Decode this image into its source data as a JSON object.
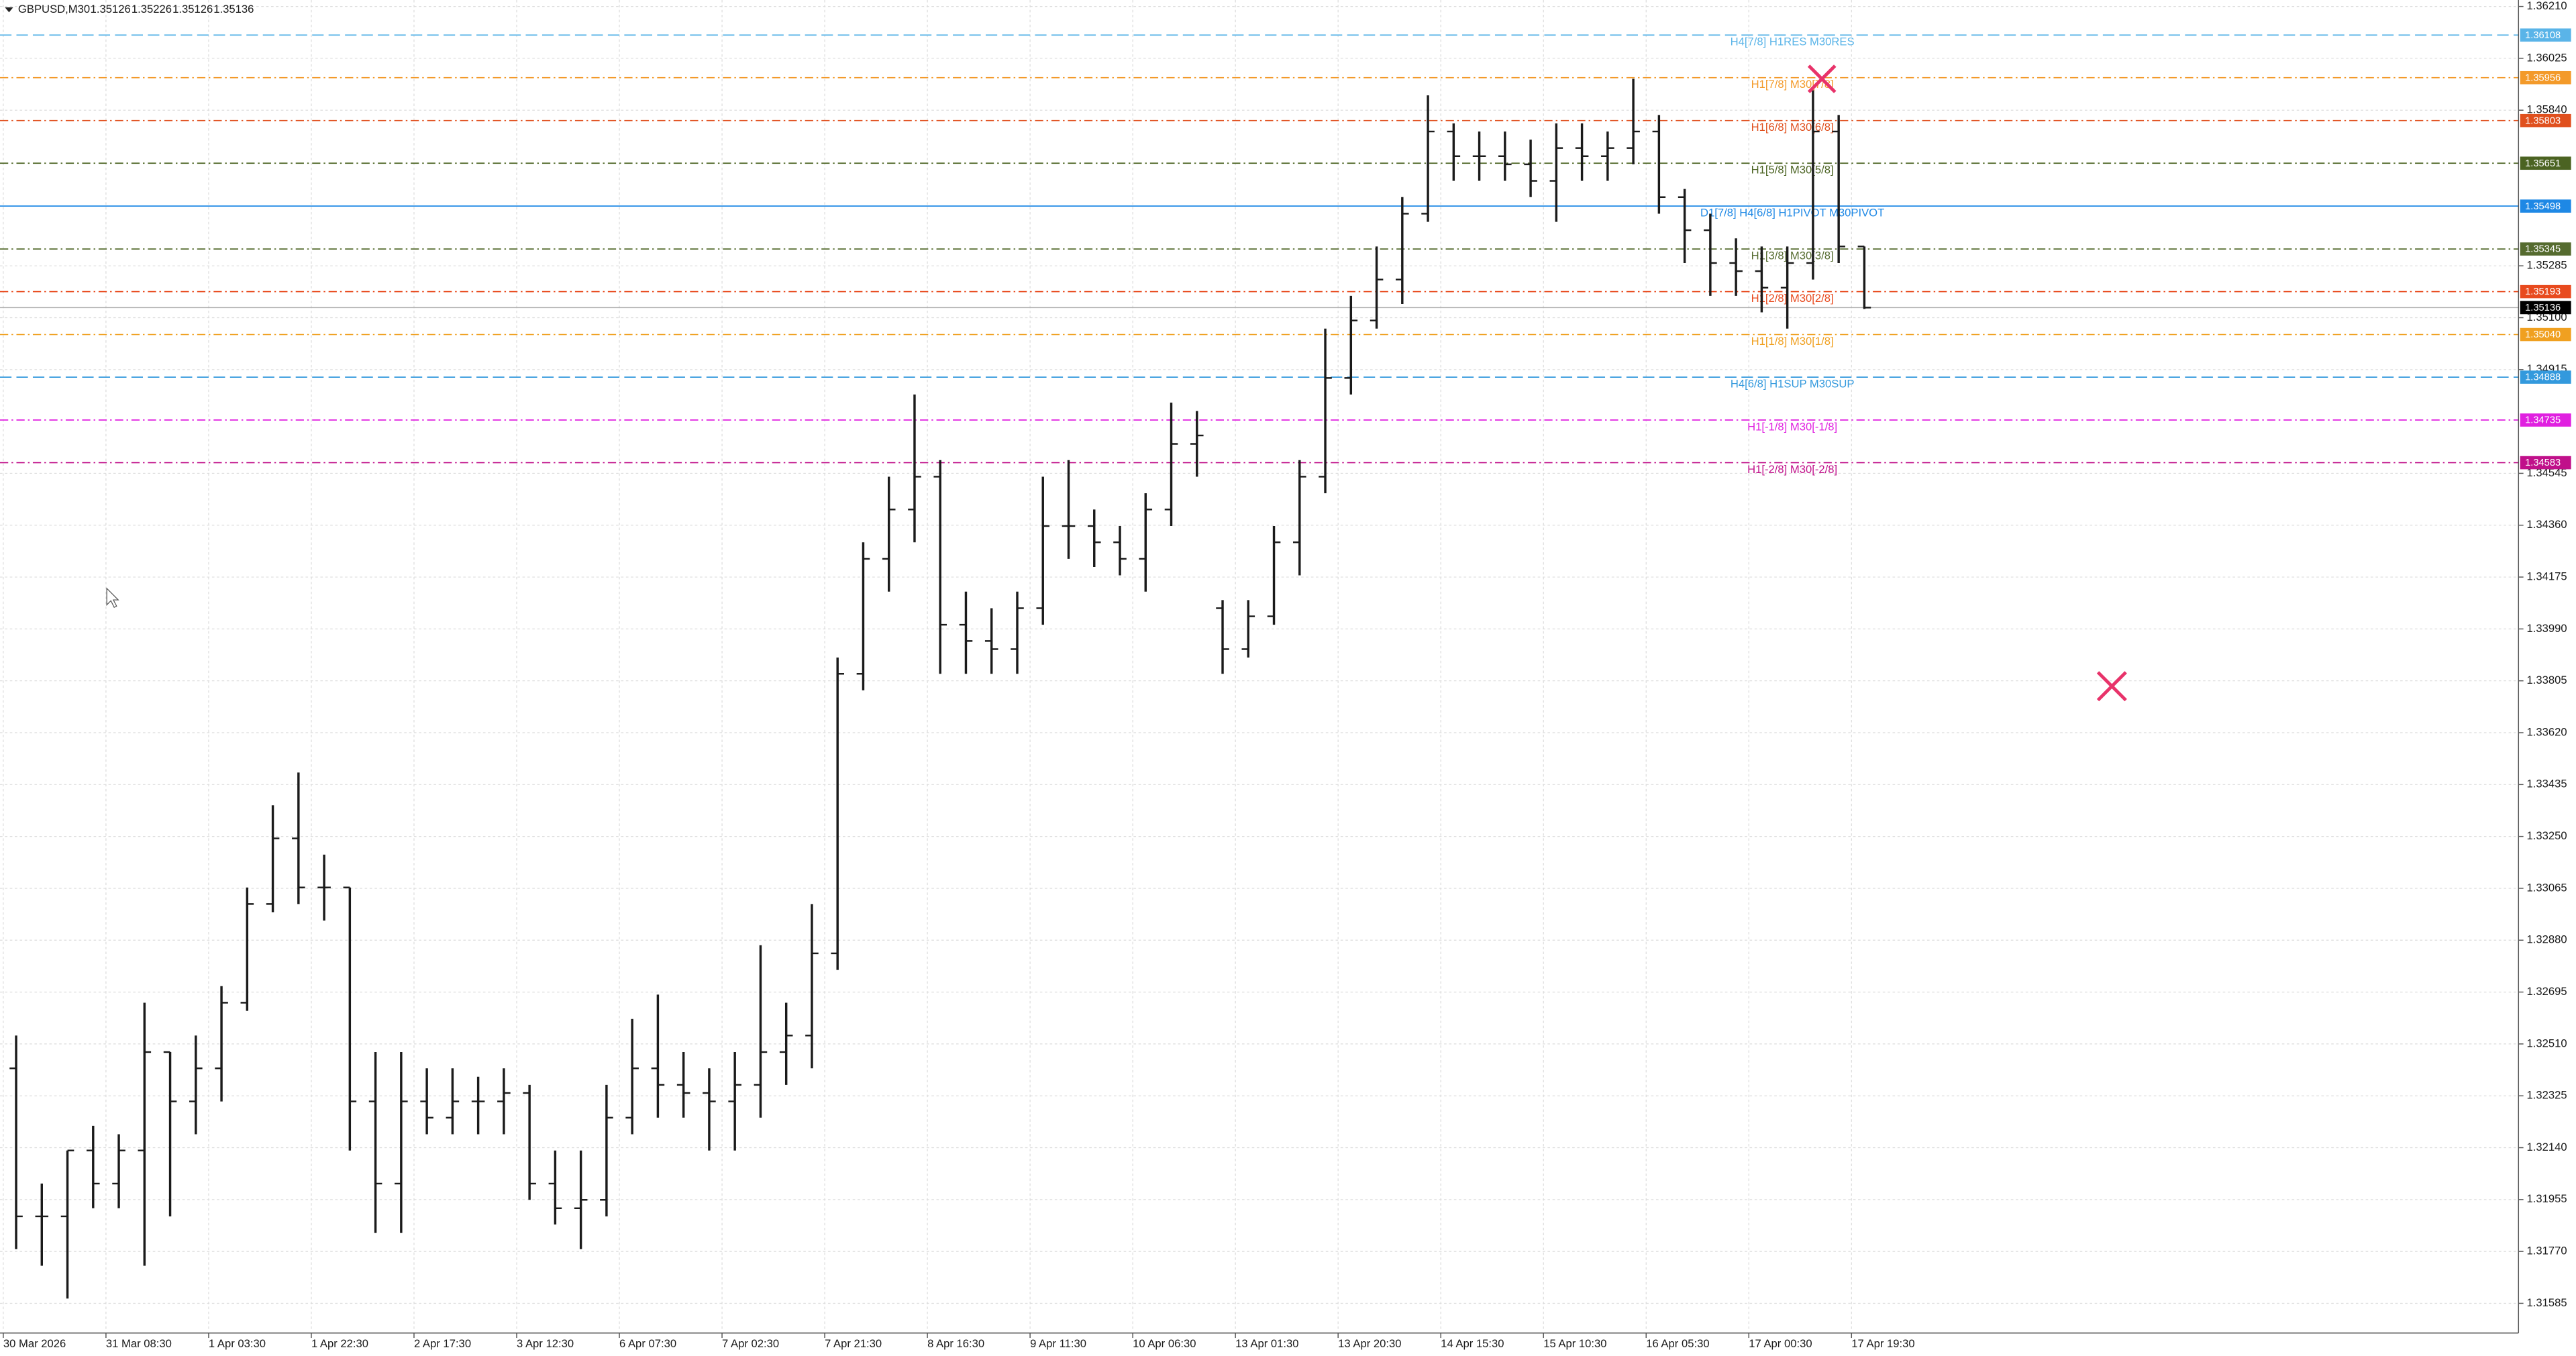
{
  "chart_data": {
    "type": "ohlc",
    "title": "GBPUSD,M30",
    "last_bar": [
      1.35126,
      1.35226,
      1.35126,
      1.35136
    ],
    "color": "#1a1a1a",
    "current_color": "#000000",
    "grid": true,
    "ylim": [
      1.31485,
      1.36233
    ],
    "yticks": [
      {
        "value": 1.3621,
        "label": "1.36210"
      },
      1.36025,
      {
        "value": 1.3584,
        "label": "1.35840"
      },
      1.35285,
      {
        "value": 1.351,
        "label": "1.35100"
      },
      1.34915,
      1.34545,
      {
        "value": 1.3436,
        "label": "1.34360"
      },
      1.34175,
      {
        "value": 1.3399,
        "label": "1.33990"
      },
      1.33805,
      {
        "value": 1.3362,
        "label": "1.33620"
      },
      1.33435,
      {
        "value": 1.3325,
        "label": "1.33250"
      },
      1.33065,
      {
        "value": 1.3288,
        "label": "1.32880"
      },
      1.32695,
      {
        "value": 1.3251,
        "label": "1.32510"
      },
      1.32325,
      {
        "value": 1.3214,
        "label": "1.32140"
      },
      1.31955,
      {
        "value": 1.3177,
        "label": "1.31770"
      },
      1.31585
    ],
    "xtick_labels": [
      "30 Mar 2026",
      "31 Mar 08:30",
      "1 Apr 03:30",
      "1 Apr 22:30",
      "2 Apr 17:30",
      "3 Apr 12:30",
      "6 Apr 07:30",
      "7 Apr 02:30",
      "7 Apr 21:30",
      "8 Apr 16:30",
      "9 Apr 11:30",
      "10 Apr 06:30",
      "13 Apr 01:30",
      "13 Apr 20:30",
      "14 Apr 15:30",
      "15 Apr 10:30",
      "16 Apr 05:30",
      "17 Apr 00:30",
      "17 Apr 19:30"
    ],
    "open": [
      1.32423,
      1.31895,
      1.31895,
      1.3213,
      1.32012,
      1.3213,
      1.32481,
      1.32305,
      1.32423,
      1.32657,
      1.33009,
      1.33243,
      1.33068,
      1.33068,
      1.32305,
      1.32012,
      1.32305,
      1.32247,
      1.32305,
      1.32305,
      1.32335,
      1.32012,
      1.31924,
      1.31954,
      1.32247,
      1.32423,
      1.32364,
      1.32335,
      1.32305,
      1.32364,
      1.32481,
      1.3254,
      1.32833,
      1.3383,
      1.3424,
      1.34416,
      1.34533,
      1.34005,
      1.33947,
      1.33918,
      1.34064,
      1.34357,
      1.34357,
      1.34299,
      1.3424,
      1.34416,
      1.3465,
      1.34064,
      1.33918,
      1.34035,
      1.34299,
      1.34533,
      1.34885,
      1.3509,
      1.35236,
      1.35471,
      1.35764,
      1.35676,
      1.35676,
      1.35647,
      1.35588,
      1.35705,
      1.35676,
      1.35705,
      1.35764,
      1.3553,
      1.35412,
      1.35295,
      1.35266,
      1.35207,
      1.35295,
      1.35764,
      1.35354
    ],
    "high": [
      1.3254,
      1.32012,
      1.3213,
      1.32218,
      1.32188,
      1.32657,
      1.32481,
      1.3254,
      1.32716,
      1.33068,
      1.33361,
      1.33478,
      1.33185,
      1.33068,
      1.32481,
      1.32481,
      1.32423,
      1.32423,
      1.32393,
      1.32423,
      1.32364,
      1.3213,
      1.3213,
      1.32364,
      1.32599,
      1.32686,
      1.32481,
      1.32423,
      1.32481,
      1.32862,
      1.32657,
      1.33009,
      1.33888,
      1.34299,
      1.34533,
      1.34826,
      1.34592,
      1.34123,
      1.34064,
      1.34123,
      1.34533,
      1.34592,
      1.34416,
      1.34357,
      1.34474,
      1.34797,
      1.34767,
      1.34093,
      1.34093,
      1.34357,
      1.34592,
      1.35061,
      1.35178,
      1.35354,
      1.3553,
      1.35893,
      1.35793,
      1.35764,
      1.35764,
      1.35735,
      1.35793,
      1.35793,
      1.35764,
      1.35952,
      1.35823,
      1.35559,
      1.35471,
      1.35383,
      1.35354,
      1.35354,
      1.35911,
      1.35823,
      1.35354
    ],
    "low": [
      1.31778,
      1.31719,
      1.31602,
      1.31924,
      1.31924,
      1.31719,
      1.31895,
      1.32188,
      1.32305,
      1.32628,
      1.3298,
      1.33009,
      1.3295,
      1.3213,
      1.31836,
      1.31836,
      1.32188,
      1.32188,
      1.32188,
      1.32188,
      1.31954,
      1.31866,
      1.31778,
      1.31895,
      1.32188,
      1.32247,
      1.32247,
      1.3213,
      1.3213,
      1.32247,
      1.32364,
      1.32423,
      1.32774,
      1.33771,
      1.34123,
      1.34299,
      1.3383,
      1.3383,
      1.3383,
      1.3383,
      1.34005,
      1.3424,
      1.34211,
      1.34181,
      1.34123,
      1.34357,
      1.34533,
      1.3383,
      1.33888,
      1.34005,
      1.34181,
      1.34474,
      1.34826,
      1.35061,
      1.35149,
      1.35442,
      1.35588,
      1.35588,
      1.35588,
      1.3553,
      1.35442,
      1.35588,
      1.35588,
      1.35647,
      1.35471,
      1.35295,
      1.35178,
      1.35178,
      1.35119,
      1.35061,
      1.35236,
      1.35295,
      1.35131
    ],
    "close": [
      1.31895,
      1.31895,
      1.3213,
      1.32012,
      1.3213,
      1.32481,
      1.32305,
      1.32423,
      1.32657,
      1.33009,
      1.33243,
      1.33068,
      1.33068,
      1.32305,
      1.32012,
      1.32305,
      1.32247,
      1.32305,
      1.32305,
      1.32335,
      1.32012,
      1.31924,
      1.31954,
      1.32247,
      1.32423,
      1.32364,
      1.32335,
      1.32305,
      1.32364,
      1.32481,
      1.3254,
      1.32833,
      1.3383,
      1.3424,
      1.34416,
      1.34533,
      1.34005,
      1.33947,
      1.33918,
      1.34064,
      1.34357,
      1.34357,
      1.34299,
      1.3424,
      1.34416,
      1.3465,
      1.3468,
      1.33918,
      1.34035,
      1.34299,
      1.34533,
      1.34885,
      1.3509,
      1.35236,
      1.35471,
      1.35764,
      1.35676,
      1.35676,
      1.35647,
      1.35588,
      1.35705,
      1.35676,
      1.35705,
      1.35764,
      1.3553,
      1.35412,
      1.35295,
      1.35266,
      1.35207,
      1.35295,
      1.35764,
      1.35354,
      1.35136
    ],
    "levels": [
      {
        "label": "H4[7/8] H1RES M30RES",
        "price": 1.36108,
        "color": "#5ab4e8",
        "style": "dashed"
      },
      {
        "label": "H1[7/8] M30[7/8]",
        "price": 1.35956,
        "color": "#f39a2a",
        "style": "dashdot"
      },
      {
        "label": "H1[6/8] M30[6/8]",
        "price": 1.35803,
        "color": "#e0501e",
        "style": "dashdot"
      },
      {
        "label": "H1[5/8] M30[5/8]",
        "price": 1.35651,
        "color": "#4b6322",
        "style": "dashdot"
      },
      {
        "label": "D1[7/8] H4[6/8] H1PIVOT M30PIVOT",
        "price": 1.35498,
        "color": "#1e88e5",
        "style": "solid"
      },
      {
        "label": "H1[3/8] M30[3/8]",
        "price": 1.35345,
        "color": "#556b2f",
        "style": "dashdot"
      },
      {
        "label": "H1[2/8] M30[2/8]",
        "price": 1.35193,
        "color": "#e84a1e",
        "style": "dashdot"
      },
      {
        "label": "H1[1/8] M30[1/8]",
        "price": 1.3504,
        "price_label": "1.35040",
        "color": "#f0a020",
        "style": "dashdot"
      },
      {
        "label": "H4[6/8] H1SUP M30SUP",
        "price": 1.34888,
        "color": "#3399dd",
        "style": "dashed"
      },
      {
        "label": "H1[-1/8] M30[-1/8]",
        "price": 1.34735,
        "color": "#e020e0",
        "style": "dashdot"
      },
      {
        "label": "H1[-2/8] M30[-2/8]",
        "price": 1.34583,
        "color": "#c0108a",
        "style": "dashdot"
      }
    ]
  }
}
